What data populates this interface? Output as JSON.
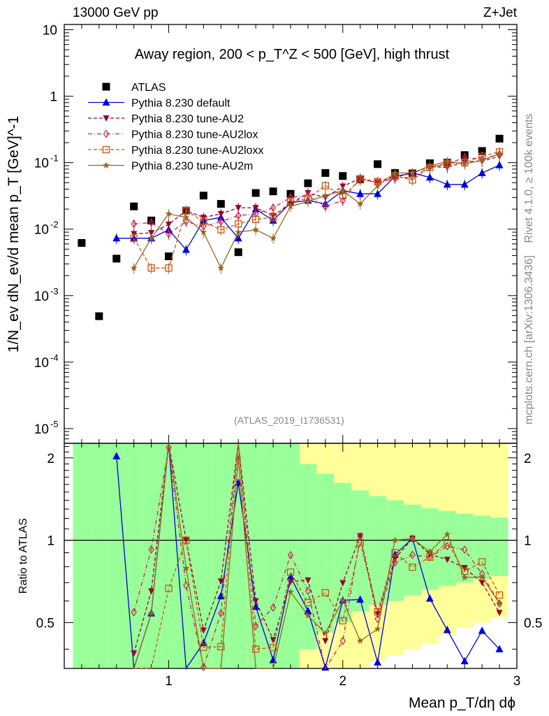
{
  "header": {
    "energy": "13000 GeV pp",
    "process": "Z+Jet"
  },
  "side": {
    "rivet": "Rivet 4.1.0, ≥ 100k events",
    "mcplots": "mcplots.cern.ch [arXiv:1306.3436]"
  },
  "watermark": "(ATLAS_2019_I1736531)",
  "chart_data": {
    "type": "scatter",
    "title": "Away region, 200 < p_T^Z < 500 [GeV], high thrust",
    "xlabel": "Mean p_T/dη dϕ",
    "ylabel": "1/N_ev dN_ev/d mean p_T [GeV]^-1",
    "ratio_ylabel": "Ratio to ATLAS",
    "xlim": [
      0.4,
      3.0
    ],
    "ylim": [
      6e-06,
      12
    ],
    "ratio_ylim": [
      0.34,
      2.26
    ],
    "x_ticks": [
      "1",
      "2",
      "3"
    ],
    "y_ticks": [
      "10^-5",
      "10^-4",
      "10^-3",
      "10^-2",
      "10^-1",
      "1",
      "10"
    ],
    "ratio_ticks": [
      "0.5",
      "1",
      "2"
    ],
    "ratio_bands": {
      "edges": [
        0.45,
        0.55,
        0.65,
        0.75,
        0.85,
        0.95,
        1.05,
        1.15,
        1.25,
        1.35,
        1.45,
        1.55,
        1.65,
        1.75,
        1.85,
        1.95,
        2.05,
        2.15,
        2.25,
        2.35,
        2.45,
        2.55,
        2.65,
        2.75,
        2.85,
        2.95
      ],
      "green_low": [
        0.34,
        0.34,
        0.34,
        0.34,
        0.34,
        0.34,
        0.34,
        0.34,
        0.34,
        0.34,
        0.34,
        0.34,
        0.34,
        0.4,
        0.46,
        0.5,
        0.55,
        0.58,
        0.6,
        0.63,
        0.66,
        0.68,
        0.7,
        0.72,
        0.74
      ],
      "green_high": [
        2.26,
        2.26,
        2.26,
        2.26,
        2.26,
        2.26,
        2.26,
        2.26,
        2.26,
        2.26,
        2.26,
        2.26,
        2.26,
        1.9,
        1.75,
        1.62,
        1.52,
        1.45,
        1.4,
        1.35,
        1.31,
        1.28,
        1.25,
        1.23,
        1.21
      ],
      "yellow_low": [
        0.34,
        0.34,
        0.34,
        0.34,
        0.34,
        0.34,
        0.34,
        0.34,
        0.34,
        0.34,
        0.34,
        0.34,
        0.34,
        0.34,
        0.34,
        0.34,
        0.34,
        0.36,
        0.38,
        0.4,
        0.42,
        0.45,
        0.48,
        0.5,
        0.52
      ],
      "yellow_high": [
        2.26,
        2.26,
        2.26,
        2.26,
        2.26,
        2.26,
        2.26,
        2.26,
        2.26,
        2.26,
        2.26,
        2.26,
        2.26,
        2.26,
        2.26,
        2.26,
        2.26,
        2.26,
        2.26,
        2.26,
        2.26,
        2.26,
        2.26,
        2.26,
        2.26
      ]
    },
    "series": [
      {
        "name": "ATLAS",
        "color": "#000000",
        "marker": "square",
        "line": "none",
        "x": [
          0.5,
          0.6,
          0.7,
          0.8,
          0.9,
          1.0,
          1.1,
          1.2,
          1.3,
          1.4,
          1.5,
          1.6,
          1.7,
          1.8,
          1.9,
          2.0,
          2.1,
          2.2,
          2.3,
          2.4,
          2.5,
          2.6,
          2.7,
          2.8,
          2.9
        ],
        "y": [
          0.0062,
          0.00049,
          0.0036,
          0.022,
          0.0135,
          0.0039,
          0.019,
          0.032,
          0.024,
          0.0045,
          0.035,
          0.037,
          0.034,
          0.049,
          0.07,
          0.063,
          0.056,
          0.095,
          0.07,
          0.069,
          0.098,
          0.1,
          0.13,
          0.15,
          0.23
        ]
      },
      {
        "name": "Pythia 8.230 default",
        "color": "#0000dd",
        "marker": "triangle-up",
        "line": "solid",
        "x": [
          0.7,
          0.8,
          0.9,
          1.0,
          1.1,
          1.2,
          1.3,
          1.4,
          1.5,
          1.6,
          1.7,
          1.8,
          1.9,
          2.0,
          2.1,
          2.2,
          2.3,
          2.4,
          2.5,
          2.6,
          2.7,
          2.8,
          2.9
        ],
        "y": [
          0.0073,
          0.0073,
          0.0073,
          0.0098,
          0.0049,
          0.0135,
          0.015,
          0.0073,
          0.02,
          0.0135,
          0.025,
          0.027,
          0.024,
          0.038,
          0.034,
          0.034,
          0.062,
          0.07,
          0.06,
          0.047,
          0.047,
          0.07,
          0.092
        ]
      },
      {
        "name": "Pythia 8.230 tune-AU2",
        "color": "#990033",
        "marker": "triangle-down",
        "line": "dashed",
        "x": [
          0.8,
          0.9,
          1.0,
          1.1,
          1.2,
          1.3,
          1.4,
          1.5,
          1.6,
          1.7,
          1.8,
          1.9,
          2.0,
          2.1,
          2.2,
          2.3,
          2.4,
          2.5,
          2.6,
          2.7,
          2.8,
          2.9
        ],
        "y": [
          0.0085,
          0.0088,
          0.0118,
          0.019,
          0.015,
          0.017,
          0.021,
          0.021,
          0.016,
          0.024,
          0.035,
          0.03,
          0.044,
          0.058,
          0.051,
          0.06,
          0.07,
          0.087,
          0.085,
          0.103,
          0.105,
          0.125
        ]
      },
      {
        "name": "Pythia 8.230 tune-AU2lox",
        "color": "#cc2244",
        "marker": "diamond-open",
        "line": "dashdot",
        "x": [
          0.8,
          0.9,
          1.0,
          1.1,
          1.2,
          1.3,
          1.4,
          1.5,
          1.6,
          1.7,
          1.8,
          1.9,
          2.0,
          2.1,
          2.2,
          2.3,
          2.4,
          2.5,
          2.6,
          2.7,
          2.8,
          2.9
        ],
        "y": [
          0.012,
          0.0125,
          0.0085,
          0.013,
          0.011,
          0.013,
          0.016,
          0.017,
          0.021,
          0.03,
          0.032,
          0.022,
          0.027,
          0.058,
          0.049,
          0.058,
          0.061,
          0.085,
          0.095,
          0.12,
          0.113,
          0.135
        ]
      },
      {
        "name": "Pythia 8.230 tune-AU2loxx",
        "color": "#cc5511",
        "marker": "square-open",
        "line": "dashed",
        "x": [
          0.8,
          0.9,
          1.0,
          1.1,
          1.2,
          1.3,
          1.4,
          1.5,
          1.6,
          1.7,
          1.8,
          1.9,
          2.0,
          2.1,
          2.2,
          2.3,
          2.4,
          2.5,
          2.6,
          2.7,
          2.8,
          2.9
        ],
        "y": [
          0.0073,
          0.0026,
          0.0026,
          0.019,
          0.013,
          0.0098,
          0.012,
          0.014,
          0.015,
          0.026,
          0.029,
          0.045,
          0.032,
          0.055,
          0.052,
          0.063,
          0.055,
          0.085,
          0.098,
          0.1,
          0.125,
          0.145
        ]
      },
      {
        "name": "Pythia 8.230 tune-AU2m",
        "color": "#996622",
        "marker": "star",
        "line": "solid",
        "x": [
          0.8,
          0.9,
          1.0,
          1.1,
          1.2,
          1.3,
          1.4,
          1.5,
          1.6,
          1.7,
          1.8,
          1.9,
          2.0,
          2.1,
          2.2,
          2.3,
          2.4,
          2.5,
          2.6,
          2.7,
          2.8,
          2.9
        ],
        "y": [
          0.0026,
          0.0073,
          0.017,
          0.015,
          0.009,
          0.0026,
          0.009,
          0.0098,
          0.0073,
          0.022,
          0.026,
          0.032,
          0.038,
          0.024,
          0.045,
          0.07,
          0.07,
          0.089,
          0.105,
          0.095,
          0.11,
          0.135
        ]
      }
    ]
  }
}
